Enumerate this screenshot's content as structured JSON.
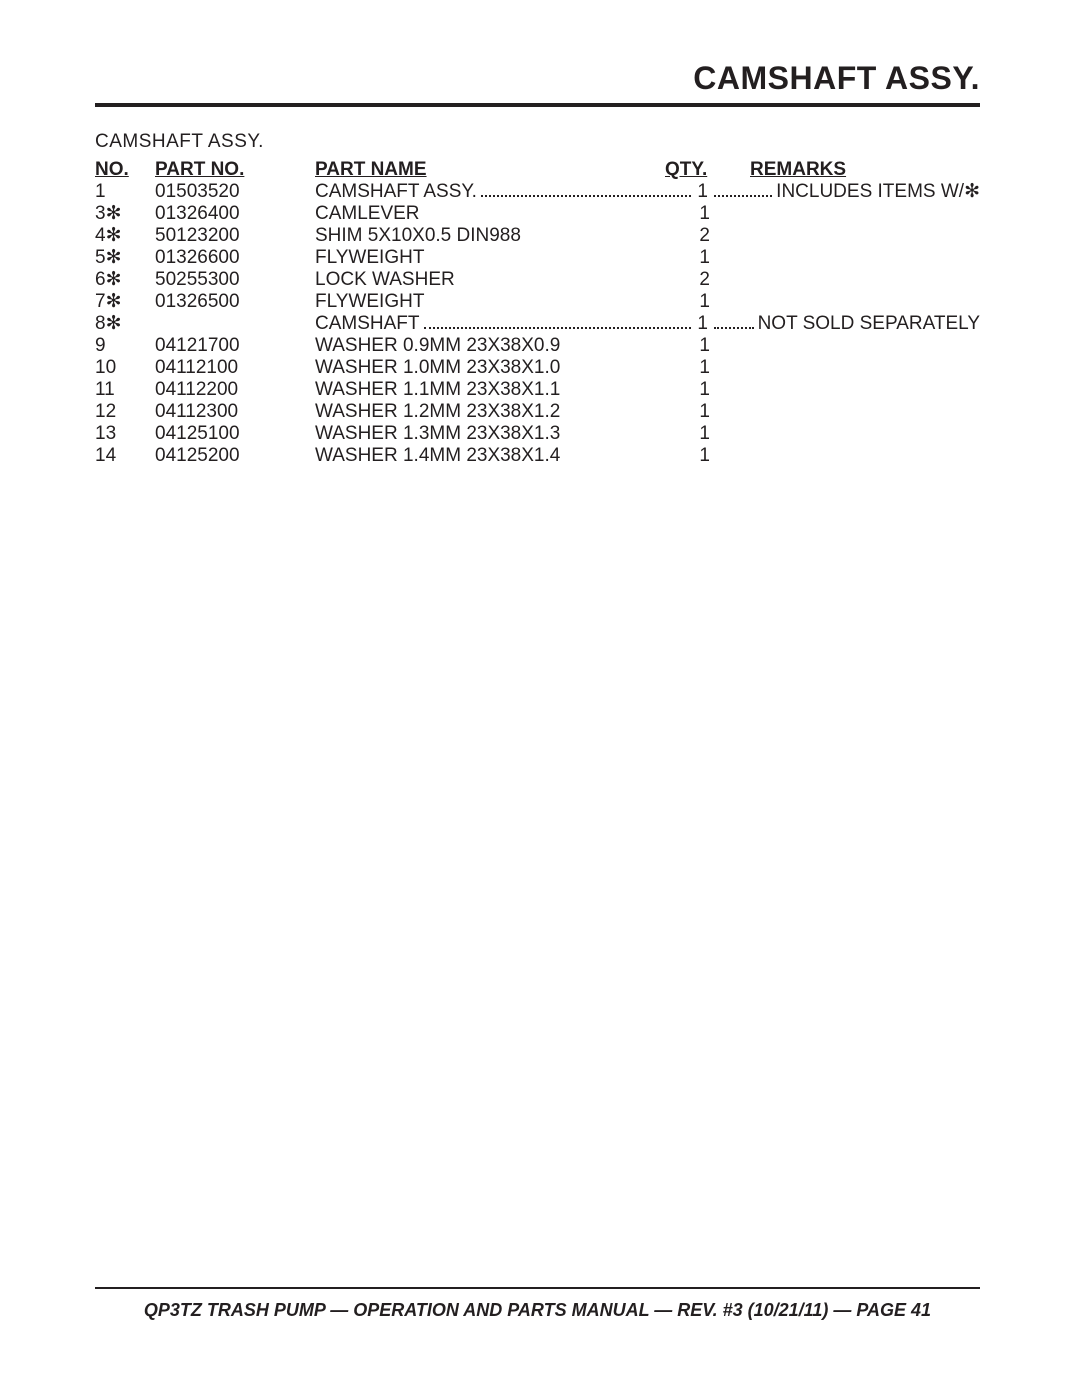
{
  "colors": {
    "text": "#231f20",
    "background": "#ffffff",
    "rule": "#231f20"
  },
  "typography": {
    "base_fontsize": 19,
    "title_fontsize": 32,
    "footer_fontsize": 18,
    "line_height": 22
  },
  "header": {
    "title": "CAMSHAFT ASSY."
  },
  "subtitle": "CAMSHAFT ASSY.",
  "columns": {
    "no": "NO.",
    "part": "PART NO.",
    "name": "PART NAME",
    "qty": "QTY.",
    "remarks": "REMARKS"
  },
  "rows": [
    {
      "no": "1",
      "part": "01503520",
      "name": "CAMSHAFT ASSY.",
      "qty": "1",
      "remarks": "INCLUDES ITEMS W/✻",
      "leader": true
    },
    {
      "no": "3✻",
      "part": "01326400",
      "name": "CAMLEVER",
      "qty": "1",
      "remarks": "",
      "leader": false
    },
    {
      "no": "4✻",
      "part": "50123200",
      "name": "SHIM 5X10X0.5 DIN988",
      "qty": "2",
      "remarks": "",
      "leader": false
    },
    {
      "no": "5✻",
      "part": "01326600",
      "name": "FLYWEIGHT",
      "qty": "1",
      "remarks": "",
      "leader": false
    },
    {
      "no": "6✻",
      "part": "50255300",
      "name": "LOCK WASHER",
      "qty": "2",
      "remarks": "",
      "leader": false
    },
    {
      "no": "7✻",
      "part": "01326500",
      "name": "FLYWEIGHT",
      "qty": "1",
      "remarks": "",
      "leader": false
    },
    {
      "no": "8✻",
      "part": "",
      "name": "CAMSHAFT",
      "qty": "1",
      "remarks": "NOT SOLD SEPARATELY",
      "leader": true
    },
    {
      "no": "9",
      "part": "04121700",
      "name": "WASHER 0.9MM 23X38X0.9",
      "qty": "1",
      "remarks": "",
      "leader": false
    },
    {
      "no": "10",
      "part": "04112100",
      "name": "WASHER 1.0MM 23X38X1.0",
      "qty": "1",
      "remarks": "",
      "leader": false
    },
    {
      "no": "11",
      "part": "04112200",
      "name": "WASHER 1.1MM 23X38X1.1",
      "qty": "1",
      "remarks": "",
      "leader": false
    },
    {
      "no": "12",
      "part": "04112300",
      "name": "WASHER 1.2MM 23X38X1.2",
      "qty": "1",
      "remarks": "",
      "leader": false
    },
    {
      "no": "13",
      "part": "04125100",
      "name": "WASHER 1.3MM 23X38X1.3",
      "qty": "1",
      "remarks": "",
      "leader": false
    },
    {
      "no": "14",
      "part": "04125200",
      "name": "WASHER 1.4MM 23X38X1.4",
      "qty": "1",
      "remarks": "",
      "leader": false
    }
  ],
  "footer": "QP3TZ TRASH PUMP — OPERATION AND PARTS MANUAL — REV. #3 (10/21/11) — PAGE 41"
}
